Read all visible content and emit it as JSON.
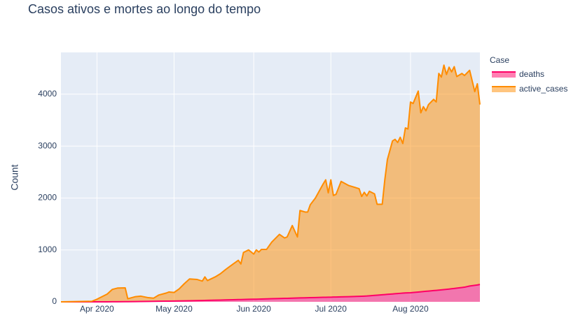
{
  "chart_data": {
    "type": "area",
    "title": "Casos ativos e mortes ao longo do tempo",
    "y_label": "Count",
    "legend_title": "Case",
    "legend_position": "right",
    "stacked": true,
    "grid": true,
    "x": [
      "2020-03-18",
      "2020-03-30",
      "2020-04-01",
      "2020-04-05",
      "2020-04-07",
      "2020-04-09",
      "2020-04-12",
      "2020-04-13",
      "2020-04-16",
      "2020-04-18",
      "2020-04-21",
      "2020-04-23",
      "2020-04-25",
      "2020-04-28",
      "2020-04-29",
      "2020-05-01",
      "2020-05-03",
      "2020-05-05",
      "2020-05-07",
      "2020-05-10",
      "2020-05-12",
      "2020-05-13",
      "2020-05-14",
      "2020-05-17",
      "2020-05-19",
      "2020-05-21",
      "2020-05-24",
      "2020-05-26",
      "2020-05-27",
      "2020-05-28",
      "2020-05-30",
      "2020-06-01",
      "2020-06-02",
      "2020-06-03",
      "2020-06-04",
      "2020-06-06",
      "2020-06-08",
      "2020-06-11",
      "2020-06-13",
      "2020-06-14",
      "2020-06-16",
      "2020-06-18",
      "2020-06-19",
      "2020-06-21",
      "2020-06-22",
      "2020-06-23",
      "2020-06-25",
      "2020-06-28",
      "2020-06-29",
      "2020-06-30",
      "2020-07-01",
      "2020-07-02",
      "2020-07-03",
      "2020-07-05",
      "2020-07-08",
      "2020-07-12",
      "2020-07-13",
      "2020-07-14",
      "2020-07-15",
      "2020-07-16",
      "2020-07-18",
      "2020-07-19",
      "2020-07-21",
      "2020-07-22",
      "2020-07-23",
      "2020-07-25",
      "2020-07-26",
      "2020-07-27",
      "2020-07-28",
      "2020-07-29",
      "2020-07-30",
      "2020-07-31",
      "2020-08-01",
      "2020-08-02",
      "2020-08-04",
      "2020-08-05",
      "2020-08-06",
      "2020-08-07",
      "2020-08-08",
      "2020-08-10",
      "2020-08-11",
      "2020-08-12",
      "2020-08-13",
      "2020-08-14",
      "2020-08-15",
      "2020-08-16",
      "2020-08-17",
      "2020-08-18",
      "2020-08-19",
      "2020-08-21",
      "2020-08-22",
      "2020-08-24",
      "2020-08-26",
      "2020-08-27",
      "2020-08-28"
    ],
    "series": [
      {
        "name": "deaths",
        "color": "#ff0066",
        "values": [
          0,
          0,
          0,
          0,
          1,
          2,
          3,
          3,
          5,
          7,
          9,
          10,
          11,
          13,
          14,
          15,
          17,
          19,
          21,
          24,
          26,
          27,
          28,
          32,
          34,
          37,
          40,
          43,
          44,
          46,
          48,
          50,
          51,
          53,
          54,
          57,
          60,
          64,
          67,
          68,
          71,
          74,
          75,
          78,
          79,
          80,
          83,
          87,
          88,
          89,
          90,
          92,
          93,
          96,
          100,
          106,
          108,
          110,
          112,
          116,
          124,
          128,
          136,
          140,
          144,
          152,
          156,
          160,
          164,
          168,
          171,
          173,
          175,
          180,
          189,
          193,
          198,
          203,
          207,
          217,
          221,
          226,
          231,
          235,
          240,
          246,
          252,
          258,
          264,
          276,
          282,
          305,
          318,
          325,
          335
        ]
      },
      {
        "name": "active_cases",
        "color": "#ff8c00",
        "values": [
          0,
          10,
          50,
          150,
          239,
          263,
          267,
          57,
          95,
          103,
          71,
          60,
          119,
          157,
          176,
          165,
          233,
          331,
          419,
          406,
          374,
          453,
          382,
          448,
          506,
          583,
          690,
          757,
          686,
          904,
          952,
          870,
          949,
          907,
          956,
          953,
          1090,
          1236,
          1163,
          1182,
          1399,
          1176,
          1685,
          1652,
          1651,
          1790,
          1917,
          2183,
          2262,
          2011,
          2260,
          1958,
          1977,
          2224,
          2140,
          2074,
          1922,
          2000,
          1928,
          2014,
          1956,
          1752,
          1744,
          2210,
          2596,
          2948,
          2974,
          2910,
          3006,
          2882,
          3179,
          3157,
          3675,
          3640,
          3871,
          3447,
          3562,
          3477,
          3593,
          3683,
          3629,
          4174,
          4099,
          4325,
          4140,
          4274,
          4178,
          4272,
          4076,
          4124,
          4078,
          4155,
          3732,
          3875,
          3465
        ]
      }
    ],
    "xlim": [
      "2020-03-18",
      "2020-08-28"
    ],
    "xticks": [
      {
        "value": "2020-04-01",
        "label": "Apr 2020"
      },
      {
        "value": "2020-05-01",
        "label": "May 2020"
      },
      {
        "value": "2020-06-01",
        "label": "Jun 2020"
      },
      {
        "value": "2020-07-01",
        "label": "Jul 2020"
      },
      {
        "value": "2020-08-01",
        "label": "Aug 2020"
      }
    ],
    "ylim": [
      0,
      4805
    ],
    "yticks": [
      0,
      1000,
      2000,
      3000,
      4000
    ]
  }
}
